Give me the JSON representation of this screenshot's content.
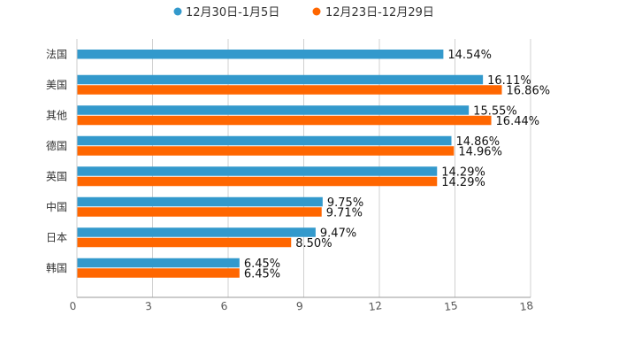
{
  "chart_data": {
    "type": "bar",
    "orientation": "horizontal",
    "categories": [
      "法国",
      "美国",
      "其他",
      "德国",
      "英国",
      "中国",
      "日本",
      "韩国"
    ],
    "series": [
      {
        "name": "12月30日-1月5日",
        "color": "#3399cc",
        "values": [
          14.54,
          16.11,
          15.55,
          14.86,
          14.29,
          9.75,
          9.47,
          6.45
        ],
        "labels": [
          "14.54%",
          "16.11%",
          "15.55%",
          "14.86%",
          "14.29%",
          "9.75%",
          "9.47%",
          "6.45%"
        ]
      },
      {
        "name": "12月23日-12月29日",
        "color": "#ff6600",
        "values": [
          null,
          16.86,
          16.44,
          14.96,
          14.29,
          9.71,
          8.5,
          6.45
        ],
        "labels": [
          null,
          "16.86%",
          "16.44%",
          "14.96%",
          "14.29%",
          "9.71%",
          "8.50%",
          "6.45%"
        ]
      }
    ],
    "xlim": [
      0,
      18
    ],
    "xticks": [
      "0",
      "3",
      "6",
      "9",
      "12",
      "15",
      "18"
    ],
    "grid": true,
    "legend": "top"
  }
}
